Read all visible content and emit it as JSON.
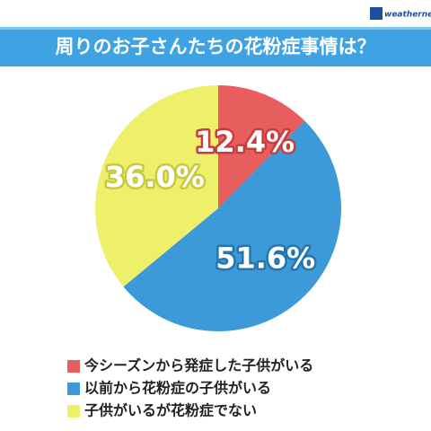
{
  "logo": "weathernews",
  "chart_data": {
    "type": "pie",
    "title": "周りのお子さんたちの花粉症事情は？",
    "categories": [
      "今シーズンから発症した子供がいる",
      "以前から花粉症の子供がいる",
      "子供がいるが花粉症でない"
    ],
    "values": [
      12.4,
      51.6,
      36.0
    ],
    "value_labels": [
      "12.4%",
      "51.6%",
      "36.0%"
    ],
    "colors": [
      "#e85d5d",
      "#3d9ad8",
      "#eef06c"
    ],
    "label_strokes": [
      "#c93c3c",
      "#2474b0",
      "#c8c940"
    ],
    "legend": "bottom-left"
  }
}
